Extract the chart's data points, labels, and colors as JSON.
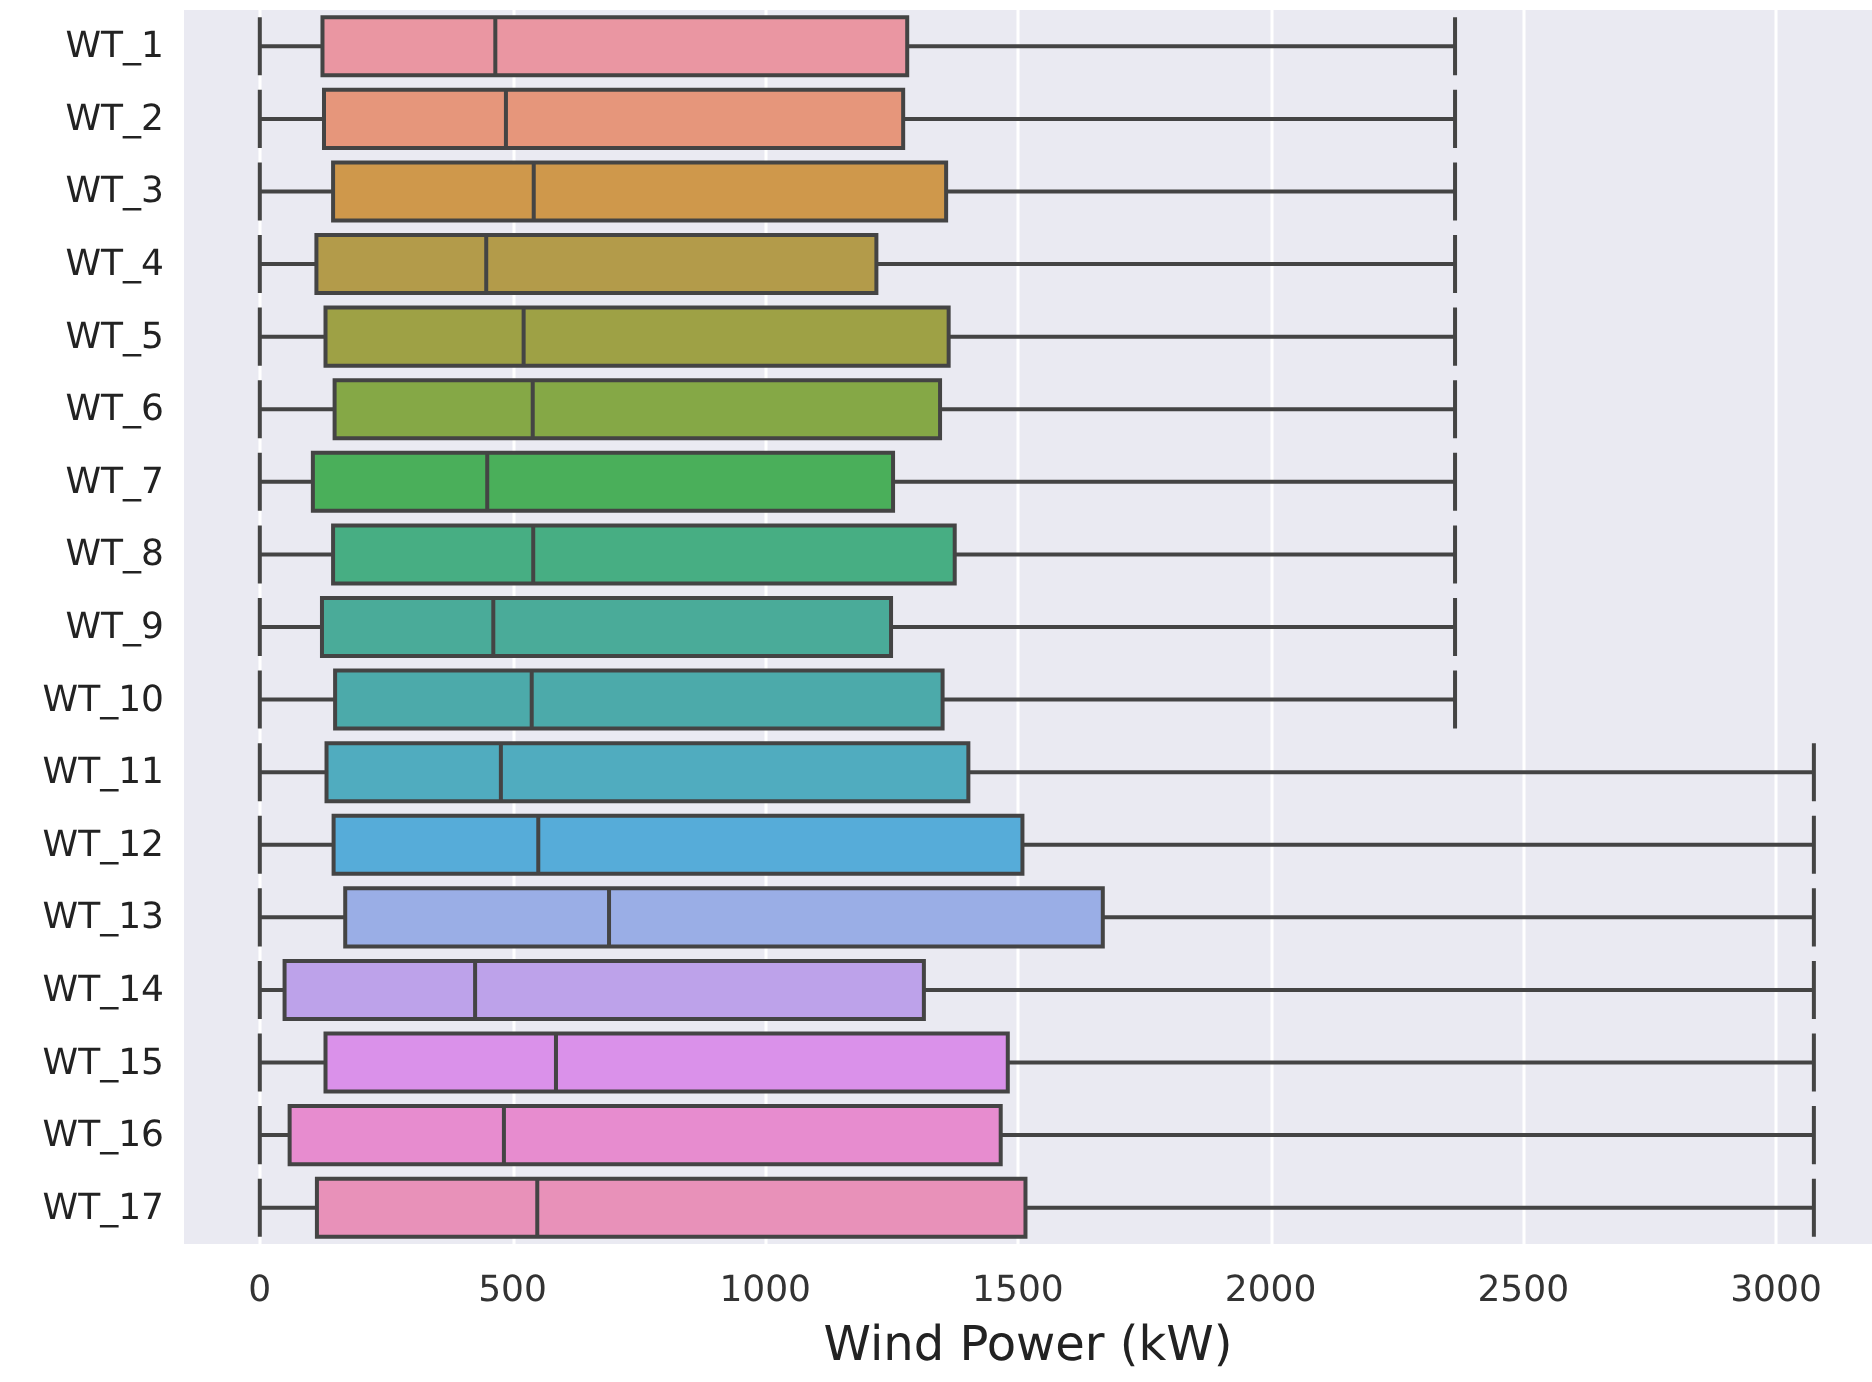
{
  "chart_data": {
    "type": "box",
    "orientation": "horizontal",
    "xlabel": "Wind Power (kW)",
    "categories": [
      "WT_1",
      "WT_2",
      "WT_3",
      "WT_4",
      "WT_5",
      "WT_6",
      "WT_7",
      "WT_8",
      "WT_9",
      "WT_10",
      "WT_11",
      "WT_12",
      "WT_13",
      "WT_14",
      "WT_15",
      "WT_16",
      "WT_17"
    ],
    "boxes": [
      {
        "low": 0,
        "q1": 124,
        "median": 466,
        "q3": 1281,
        "high": 2365
      },
      {
        "low": 0,
        "q1": 127,
        "median": 487,
        "q3": 1273,
        "high": 2365
      },
      {
        "low": 0,
        "q1": 145,
        "median": 542,
        "q3": 1358,
        "high": 2365
      },
      {
        "low": 0,
        "q1": 112,
        "median": 448,
        "q3": 1220,
        "high": 2365
      },
      {
        "low": 0,
        "q1": 130,
        "median": 522,
        "q3": 1363,
        "high": 2365
      },
      {
        "low": 0,
        "q1": 148,
        "median": 540,
        "q3": 1346,
        "high": 2365
      },
      {
        "low": 0,
        "q1": 105,
        "median": 450,
        "q3": 1253,
        "high": 2365
      },
      {
        "low": 0,
        "q1": 145,
        "median": 541,
        "q3": 1375,
        "high": 2365
      },
      {
        "low": 0,
        "q1": 123,
        "median": 462,
        "q3": 1249,
        "high": 2365
      },
      {
        "low": 0,
        "q1": 149,
        "median": 538,
        "q3": 1351,
        "high": 2365
      },
      {
        "low": 0,
        "q1": 132,
        "median": 477,
        "q3": 1402,
        "high": 3075
      },
      {
        "low": 0,
        "q1": 146,
        "median": 551,
        "q3": 1509,
        "high": 3075
      },
      {
        "low": 0,
        "q1": 169,
        "median": 691,
        "q3": 1668,
        "high": 3075
      },
      {
        "low": 0,
        "q1": 49,
        "median": 426,
        "q3": 1314,
        "high": 3075
      },
      {
        "low": 0,
        "q1": 130,
        "median": 586,
        "q3": 1480,
        "high": 3075
      },
      {
        "low": 0,
        "q1": 59,
        "median": 483,
        "q3": 1466,
        "high": 3075
      },
      {
        "low": 0,
        "q1": 113,
        "median": 549,
        "q3": 1515,
        "high": 3075
      }
    ],
    "colors": [
      "#ea96a2",
      "#e6967b",
      "#cf984b",
      "#b39b4a",
      "#9ea145",
      "#85a846",
      "#4aaf5a",
      "#47ae83",
      "#4aab99",
      "#4caaaa",
      "#50acbf",
      "#56acd9",
      "#9aaee6",
      "#bda2ea",
      "#da91ea",
      "#e78ccf",
      "#e891b9"
    ],
    "xlim": [
      -150,
      3190
    ],
    "xticks": [
      0,
      500,
      1000,
      1500,
      2000,
      2500,
      3000
    ],
    "grid": "x"
  }
}
